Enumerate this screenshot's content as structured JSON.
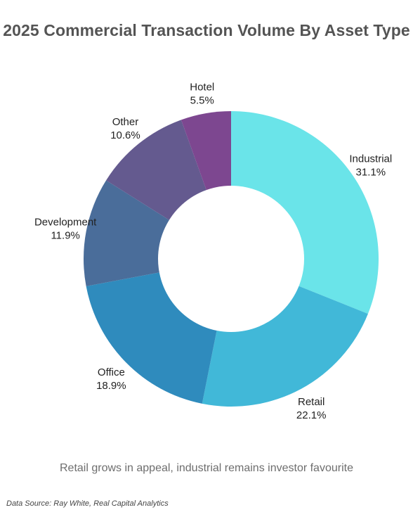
{
  "chart_data": {
    "type": "pie",
    "title": "2025 Commercial Transaction Volume By Asset Type",
    "subtitle": "Retail grows in appeal, industrial remains investor favourite",
    "source": "Data Source: Ray White, Real Capital Analytics",
    "donut": true,
    "unit": "%",
    "slices": [
      {
        "label": "Industrial",
        "value": 31.1,
        "value_text": "31.1%",
        "color": "#6ae4e9"
      },
      {
        "label": "Retail",
        "value": 22.1,
        "value_text": "22.1%",
        "color": "#41b8d8"
      },
      {
        "label": "Office",
        "value": 18.9,
        "value_text": "18.9%",
        "color": "#2f8bbd"
      },
      {
        "label": "Development",
        "value": 11.9,
        "value_text": "11.9%",
        "color": "#4a6d9a"
      },
      {
        "label": "Other",
        "value": 10.6,
        "value_text": "10.6%",
        "color": "#645a8f"
      },
      {
        "label": "Hotel",
        "value": 5.5,
        "value_text": "5.5%",
        "color": "#7d4790"
      }
    ]
  }
}
